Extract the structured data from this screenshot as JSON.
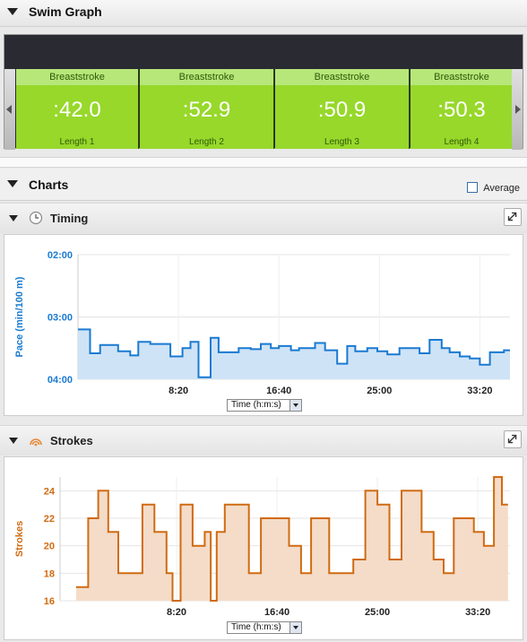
{
  "swim_graph": {
    "title": "Swim Graph",
    "lengths": [
      {
        "stroke": "Breaststroke",
        "time": ":42.0",
        "name": "Length 1"
      },
      {
        "stroke": "Breaststroke",
        "time": ":52.9",
        "name": "Length 2"
      },
      {
        "stroke": "Breaststroke",
        "time": ":50.9",
        "name": "Length 3"
      },
      {
        "stroke": "Breaststroke",
        "time": ":50.3",
        "name": "Length 4"
      }
    ]
  },
  "charts": {
    "title": "Charts",
    "average_label": "Average",
    "average_checked": false
  },
  "timing": {
    "title": "Timing",
    "icon": "clock-icon",
    "unit_select": "Time (h:m:s)"
  },
  "strokes": {
    "title": "Strokes",
    "icon": "strokes-icon",
    "unit_select": "Time (h:m:s)"
  },
  "colors": {
    "timing_line": "#1a7ad1",
    "timing_fill": "#cfe3f6",
    "strokes_line": "#d06b12",
    "strokes_fill": "#f4dcc9",
    "length_card": "#97d82b"
  },
  "chart_data": [
    {
      "type": "area",
      "name": "Timing",
      "ylabel": "Pace (min/100 m)",
      "xlabel": "",
      "y_inverted": true,
      "ylim_seconds": [
        120,
        240
      ],
      "y_ticks": [
        "02:00",
        "03:00",
        "04:00"
      ],
      "x_ticks": [
        "8:20",
        "16:40",
        "25:00",
        "33:20"
      ],
      "xlim_seconds": [
        0,
        2150
      ],
      "x_seconds": [
        0,
        60,
        110,
        150,
        200,
        260,
        300,
        360,
        410,
        460,
        520,
        560,
        600,
        660,
        700,
        740,
        800,
        860,
        910,
        960,
        1000,
        1060,
        1100,
        1140,
        1180,
        1230,
        1290,
        1340,
        1380,
        1440,
        1490,
        1540,
        1600,
        1640,
        1700,
        1750,
        1810,
        1850,
        1900,
        1950,
        2000,
        2050,
        2080,
        2120
      ],
      "values_seconds": [
        192,
        215,
        207,
        207,
        213,
        217,
        204,
        206,
        206,
        218,
        210,
        204,
        238,
        200,
        214,
        214,
        210,
        211,
        206,
        210,
        208,
        212,
        210,
        210,
        205,
        212,
        225,
        208,
        213,
        210,
        213,
        216,
        210,
        210,
        215,
        202,
        210,
        214,
        218,
        220,
        226,
        214,
        214,
        212
      ]
    },
    {
      "type": "area",
      "name": "Strokes",
      "ylabel": "Strokes",
      "xlabel": "",
      "ylim": [
        16,
        25
      ],
      "y_ticks": [
        16,
        18,
        20,
        22,
        24
      ],
      "x_ticks": [
        "8:20",
        "16:40",
        "25:00",
        "33:20"
      ],
      "xlim_seconds": [
        -80,
        2160
      ],
      "x_seconds": [
        0,
        60,
        110,
        160,
        210,
        330,
        390,
        450,
        480,
        520,
        580,
        640,
        670,
        700,
        740,
        860,
        920,
        1060,
        1120,
        1170,
        1260,
        1380,
        1440,
        1500,
        1560,
        1620,
        1720,
        1780,
        1830,
        1880,
        1930,
        1980,
        2030,
        2080,
        2120,
        2150
      ],
      "values": [
        17,
        22,
        24,
        21,
        18,
        23,
        21,
        18,
        16,
        23,
        20,
        21,
        16,
        21,
        23,
        18,
        22,
        20,
        18,
        22,
        18,
        19,
        24,
        23,
        19,
        24,
        21,
        19,
        18,
        22,
        22,
        21,
        20,
        25,
        23,
        23
      ]
    }
  ]
}
